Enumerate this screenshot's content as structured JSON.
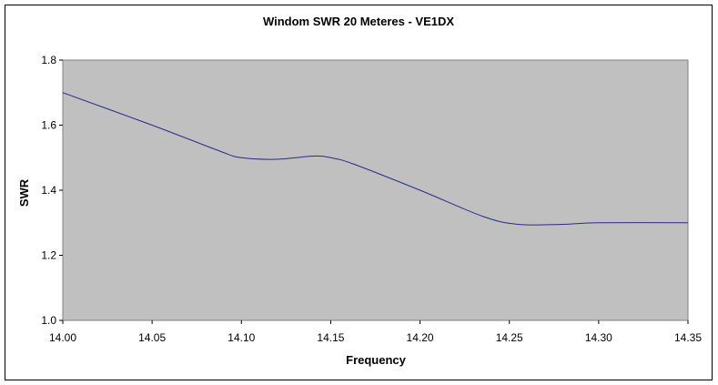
{
  "chart_data": {
    "type": "line",
    "title": "Windom SWR 20 Meteres - VE1DX",
    "xlabel": "Frequency",
    "ylabel": "SWR",
    "xlim": [
      14.0,
      14.35
    ],
    "ylim": [
      1.0,
      1.8
    ],
    "x_ticks": [
      "14.00",
      "14.05",
      "14.10",
      "14.15",
      "14.20",
      "14.25",
      "14.30",
      "14.35"
    ],
    "y_ticks": [
      "1.0",
      "1.2",
      "1.4",
      "1.6",
      "1.8"
    ],
    "grid": false,
    "plot_background": "#c0c0c0",
    "line_color": "#2a2a8a",
    "series": [
      {
        "x": [
          14.0,
          14.05,
          14.088,
          14.1,
          14.12,
          14.14,
          14.15,
          14.163,
          14.2,
          14.235,
          14.255,
          14.28,
          14.3,
          14.35
        ],
        "values": [
          1.7,
          1.6,
          1.52,
          1.5,
          1.495,
          1.505,
          1.5,
          1.48,
          1.4,
          1.32,
          1.295,
          1.295,
          1.3,
          1.3
        ]
      }
    ]
  }
}
